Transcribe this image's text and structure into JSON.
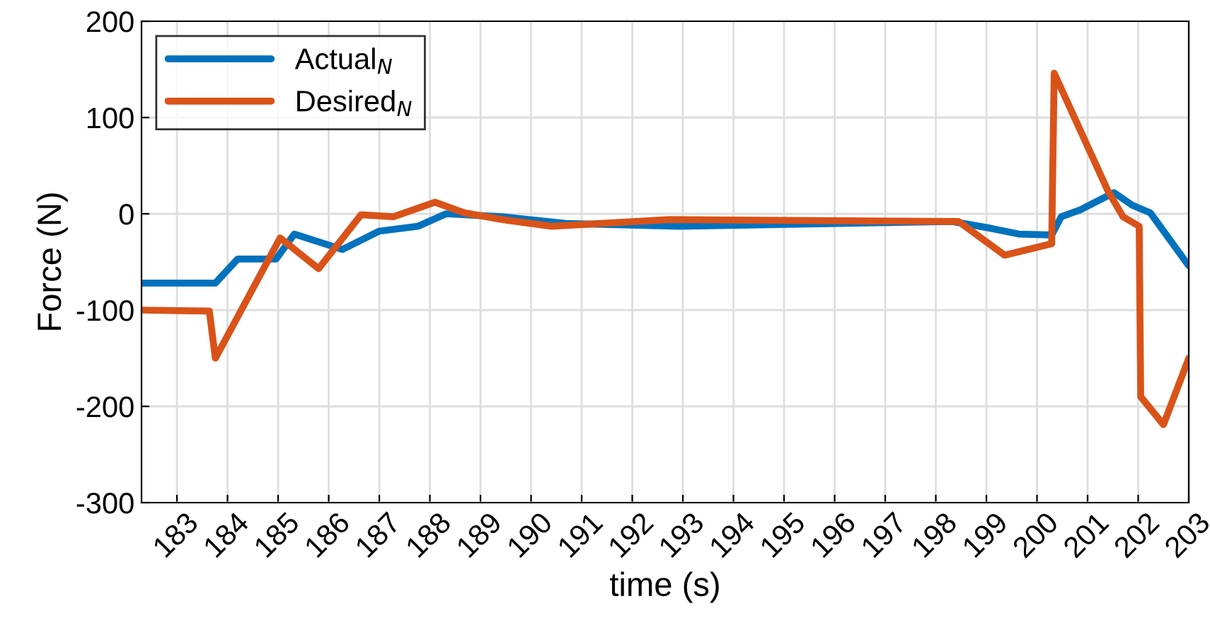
{
  "chart_data": {
    "type": "line",
    "xlabel": "time (s)",
    "ylabel": "Force (N)",
    "xlim": [
      182.3,
      203
    ],
    "ylim": [
      -300,
      200
    ],
    "xticks": [
      183,
      184,
      185,
      186,
      187,
      188,
      189,
      190,
      191,
      192,
      193,
      194,
      195,
      196,
      197,
      198,
      199,
      200,
      201,
      202,
      203
    ],
    "yticks": [
      -300,
      -200,
      -100,
      0,
      100,
      200
    ],
    "grid": true,
    "legend": "top left",
    "line_style": "solid",
    "marker": "none",
    "series": [
      {
        "name": "Actual$_{N}$",
        "color": "#0072bd",
        "x": [
          182.3,
          183.76,
          184.2,
          184.96,
          185.32,
          186.27,
          187.0,
          187.76,
          188.32,
          189.43,
          190.69,
          192.93,
          198.33,
          199.08,
          199.64,
          200.29,
          200.48,
          200.85,
          201.52,
          201.88,
          202.24,
          203
        ],
        "values": [
          -72,
          -72,
          -47,
          -47,
          -21,
          -37,
          -18,
          -13,
          0,
          -3,
          -10,
          -13,
          -8,
          -15,
          -21,
          -22,
          -3,
          4,
          22,
          9,
          1,
          -54
        ]
      },
      {
        "name": "Desired$_{N}$",
        "color": "#d95319",
        "x": [
          182.3,
          183.64,
          183.76,
          185.04,
          185.8,
          186.64,
          187.28,
          188.1,
          188.68,
          189.43,
          190.41,
          192.73,
          198.45,
          199.36,
          200.29,
          200.34,
          201.4,
          201.7,
          202.02,
          202.05,
          202.5,
          203
        ],
        "values": [
          -100,
          -101,
          -150,
          -25,
          -57,
          -1,
          -3,
          12,
          1,
          -6,
          -13,
          -6,
          -8,
          -43,
          -31,
          146,
          24,
          -3,
          -13,
          -190,
          -219,
          -150
        ]
      }
    ]
  }
}
